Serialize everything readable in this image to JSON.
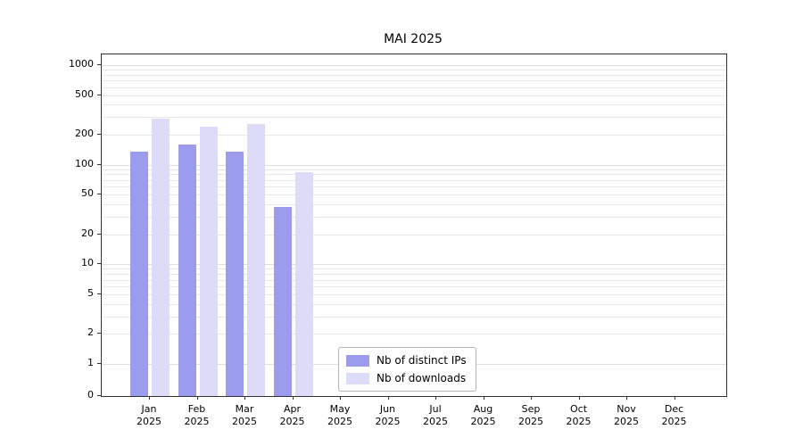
{
  "chart_data": {
    "type": "bar",
    "title": "MAI 2025",
    "categories": [
      "Jan 2025",
      "Feb 2025",
      "Mar 2025",
      "Apr 2025",
      "May 2025",
      "Jun 2025",
      "Jul 2025",
      "Aug 2025",
      "Sep 2025",
      "Oct 2025",
      "Nov 2025",
      "Dec 2025"
    ],
    "series": [
      {
        "name": "Nb of distinct IPs",
        "color": "#9c9cef",
        "values": [
          135,
          160,
          135,
          38,
          0,
          0,
          0,
          0,
          0,
          0,
          0,
          0
        ]
      },
      {
        "name": "Nb of downloads",
        "color": "#dcdcf9",
        "values": [
          290,
          240,
          255,
          85,
          0,
          0,
          0,
          0,
          0,
          0,
          0,
          0
        ]
      }
    ],
    "y_ticks": [
      0,
      1,
      2,
      5,
      10,
      20,
      50,
      100,
      200,
      500,
      1000
    ],
    "scale": "symlog",
    "ylim": [
      0,
      1300
    ],
    "grid": "horizontal-log-minor",
    "legend_position": "inside-bottom-center",
    "colors": {
      "grid": "#e7e7e7",
      "spine": "#333333",
      "background": "#ffffff"
    }
  }
}
